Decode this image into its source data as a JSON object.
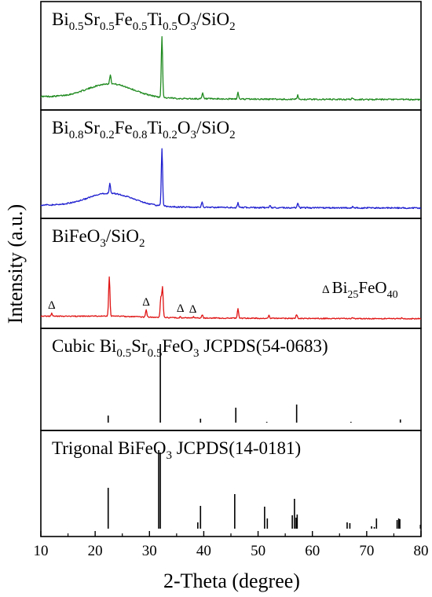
{
  "figure": {
    "ylabel": "Intensity (a.u.)",
    "xlabel": "2-Theta (degree)",
    "xticks": [
      "10",
      "20",
      "30",
      "40",
      "50",
      "60",
      "70",
      "80"
    ]
  },
  "panels": [
    {
      "label": {
        "base": "Bi",
        "parts": [
          [
            "0.5",
            "Sr"
          ],
          [
            "0.5",
            "Fe"
          ],
          [
            "0.5",
            "Ti"
          ],
          [
            "0.5",
            "O"
          ],
          [
            "3",
            "/SiO"
          ],
          [
            "2",
            ""
          ]
        ]
      }
    },
    {
      "label": {
        "base": "Bi",
        "parts": [
          [
            "0.8",
            "Sr"
          ],
          [
            "0.2",
            "Fe"
          ],
          [
            "0.8",
            "Ti"
          ],
          [
            "0.2",
            "O"
          ],
          [
            "3",
            "/SiO"
          ],
          [
            "2",
            ""
          ]
        ]
      }
    },
    {
      "label": {
        "base": "BiFeO",
        "parts": [
          [
            "3",
            "/SiO"
          ],
          [
            "2",
            ""
          ]
        ]
      },
      "legend": {
        "symbol": "Δ",
        "base": "Bi",
        "parts": [
          [
            "25",
            "FeO"
          ],
          [
            "40",
            ""
          ]
        ]
      }
    },
    {
      "label": {
        "base": "Cubic Bi",
        "parts": [
          [
            "0.5",
            "Sr"
          ],
          [
            "0.5",
            "FeO"
          ],
          [
            "3",
            " JCPDS(54-0683)"
          ]
        ]
      }
    },
    {
      "label": {
        "base": "Trigonal BiFeO",
        "parts": [
          [
            "3",
            " JCPDS(14-0181)"
          ]
        ]
      }
    }
  ],
  "chart_data": {
    "type": "line",
    "xlabel": "2-Theta (degree)",
    "ylabel": "Intensity (a.u.)",
    "xlim": [
      10,
      80
    ],
    "xticks": [
      10,
      20,
      30,
      40,
      50,
      60,
      70,
      80
    ],
    "y_ticks_shown": false,
    "stacked_panels": true,
    "series": [
      {
        "name": "Bi0.5Sr0.5Fe0.5Ti0.5O3/SiO2",
        "panel": 0,
        "kind": "xrd",
        "color": "#1f8a1f",
        "baseline": 0.04,
        "hump": {
          "center": 22.8,
          "width": 4.2,
          "height": 0.18
        },
        "peaks": [
          [
            22.8,
            0.12
          ],
          [
            32.3,
            0.78
          ],
          [
            39.8,
            0.07
          ],
          [
            46.3,
            0.08
          ],
          [
            57.3,
            0.05
          ],
          [
            67.3,
            0.02
          ],
          [
            76.5,
            0.01
          ]
        ]
      },
      {
        "name": "Bi0.8Sr0.2Fe0.8Ti0.2O3/SiO2",
        "panel": 1,
        "kind": "xrd",
        "color": "#1f1fd0",
        "baseline": 0.04,
        "hump": {
          "center": 22.8,
          "width": 4.2,
          "height": 0.17
        },
        "peaks": [
          [
            22.7,
            0.13
          ],
          [
            32.3,
            0.75
          ],
          [
            39.7,
            0.07
          ],
          [
            46.3,
            0.06
          ],
          [
            52.2,
            0.02
          ],
          [
            57.3,
            0.06
          ],
          [
            67.5,
            0.02
          ],
          [
            76.6,
            0.01
          ]
        ]
      },
      {
        "name": "BiFeO3/SiO2",
        "panel": 2,
        "kind": "xrd",
        "color": "#e01414",
        "baseline": 0.05,
        "hump": {
          "center": 23,
          "width": 5,
          "height": 0.02
        },
        "peaks": [
          [
            12,
            0.05
          ],
          [
            22.6,
            0.72
          ],
          [
            29.4,
            0.13
          ],
          [
            32.1,
            0.36
          ],
          [
            32.4,
            0.55
          ],
          [
            35.7,
            0.02
          ],
          [
            38.1,
            0.02
          ],
          [
            39.7,
            0.06
          ],
          [
            46.3,
            0.17
          ],
          [
            52.0,
            0.05
          ],
          [
            57.1,
            0.07
          ],
          [
            67.4,
            0.02
          ],
          [
            72.0,
            0.01
          ],
          [
            76.5,
            0.02
          ]
        ],
        "markers": [
          12,
          29.4,
          35.7,
          38.0
        ]
      },
      {
        "name": "Cubic Bi0.5Sr0.5FeO3 JCPDS(54-0683)",
        "panel": 3,
        "kind": "sticks",
        "color": "#000000",
        "x": [
          22.4,
          32.0,
          39.4,
          45.9,
          51.6,
          57.1,
          67.1,
          76.2
        ],
        "y": [
          9,
          100,
          5,
          19,
          1,
          23,
          1,
          4
        ]
      },
      {
        "name": "Trigonal BiFeO3 JCPDS(14-0181)",
        "panel": 4,
        "kind": "sticks",
        "color": "#000000",
        "x": [
          22.4,
          31.7,
          32.0,
          38.9,
          39.4,
          45.7,
          51.2,
          51.7,
          56.3,
          56.7,
          57.0,
          57.2,
          66.4,
          66.9,
          70.9,
          71.4,
          71.8,
          75.6,
          75.9,
          76.1,
          79.9
        ],
        "y": [
          52,
          100,
          97,
          8,
          29,
          44,
          28,
          13,
          17,
          38,
          14,
          18,
          8,
          7,
          3,
          2,
          13,
          11,
          13,
          12,
          5
        ]
      }
    ]
  }
}
